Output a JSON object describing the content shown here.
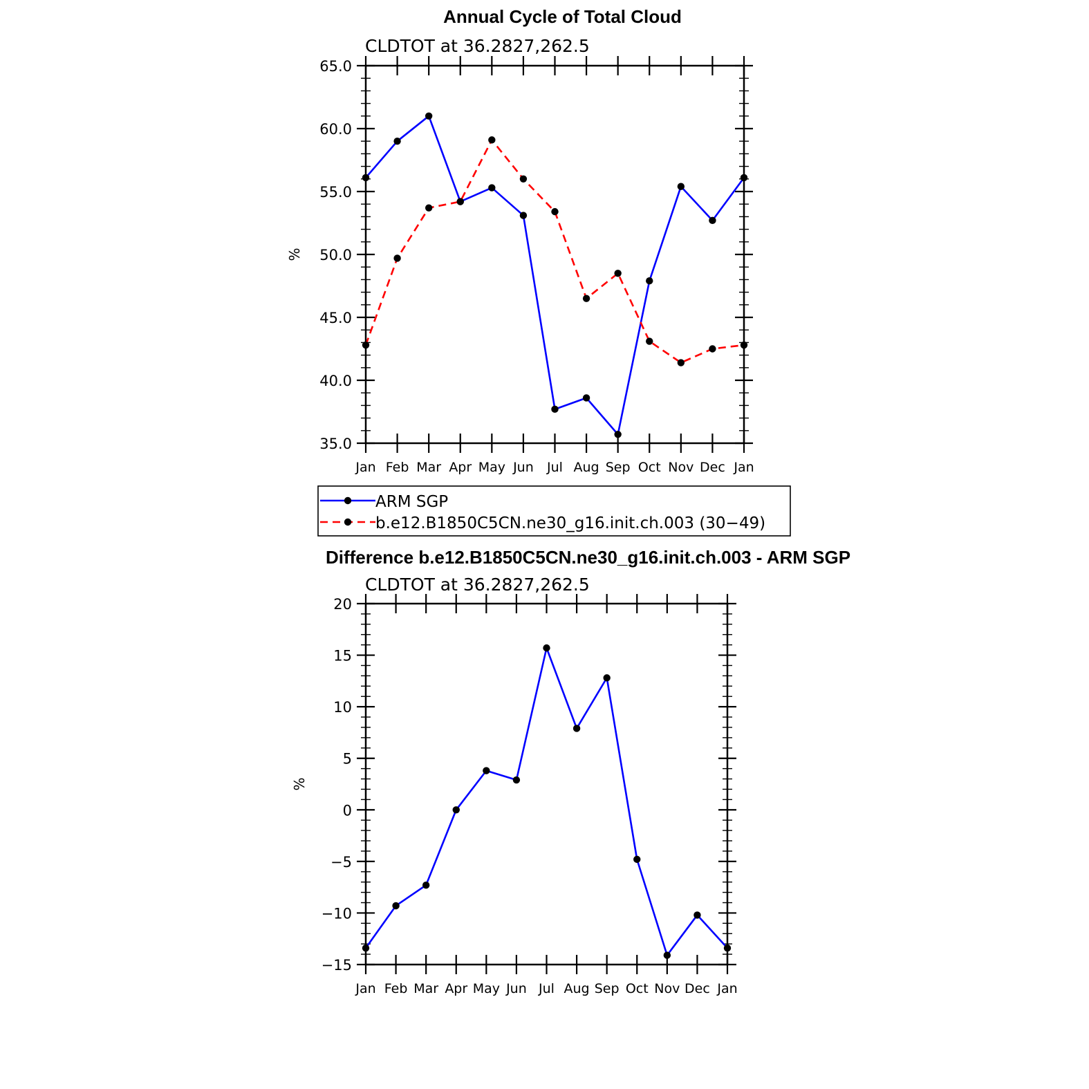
{
  "chart_data": [
    {
      "type": "line",
      "title": "Annual Cycle of Total Cloud",
      "subtitle": "CLDTOT at 36.2827,262.5",
      "xlabel": "",
      "ylabel": "%",
      "categories": [
        "Jan",
        "Feb",
        "Mar",
        "Apr",
        "May",
        "Jun",
        "Jul",
        "Aug",
        "Sep",
        "Oct",
        "Nov",
        "Dec",
        "Jan"
      ],
      "ylim": [
        35,
        65
      ],
      "yticks": [
        "35.0",
        "40.0",
        "45.0",
        "50.0",
        "55.0",
        "60.0",
        "65.0"
      ],
      "series": [
        {
          "name": "ARM SGP",
          "color": "#0000ff",
          "dash": "solid",
          "values": [
            56.1,
            59.0,
            61.0,
            54.2,
            55.3,
            53.1,
            37.7,
            38.6,
            35.7,
            47.9,
            55.4,
            52.7,
            56.1
          ]
        },
        {
          "name": "b.e12.B1850C5CN.ne30_g16.init.ch.003 (30−49)",
          "color": "#ff0000",
          "dash": "dashed",
          "values": [
            42.8,
            49.7,
            53.7,
            54.2,
            59.1,
            56.0,
            53.4,
            46.5,
            48.5,
            43.1,
            41.4,
            42.5,
            42.8
          ]
        }
      ],
      "legend": "below",
      "grid": false
    },
    {
      "type": "line",
      "title": "Difference b.e12.B1850C5CN.ne30_g16.init.ch.003 - ARM SGP",
      "subtitle": "CLDTOT at 36.2827,262.5",
      "xlabel": "",
      "ylabel": "%",
      "categories": [
        "Jan",
        "Feb",
        "Mar",
        "Apr",
        "May",
        "Jun",
        "Jul",
        "Aug",
        "Sep",
        "Oct",
        "Nov",
        "Dec",
        "Jan"
      ],
      "ylim": [
        -15,
        20
      ],
      "yticks": [
        "−15",
        "−10",
        "−5",
        "0",
        "5",
        "10",
        "15",
        "20"
      ],
      "series": [
        {
          "color": "#0000ff",
          "dash": "solid",
          "values": [
            -13.4,
            -9.3,
            -7.3,
            0.0,
            3.8,
            2.9,
            15.7,
            7.9,
            12.8,
            -4.8,
            -14.1,
            -10.2,
            -13.4
          ]
        }
      ],
      "grid": false
    }
  ]
}
